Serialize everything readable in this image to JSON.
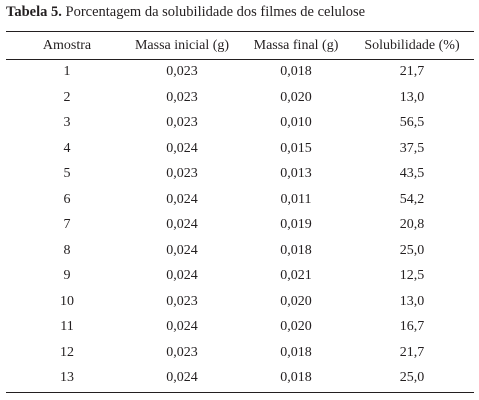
{
  "caption": {
    "label": "Tabela 5.",
    "text": "Porcentagem da solubilidade dos filmes de celulose"
  },
  "table": {
    "headers": [
      "Amostra",
      "Massa inicial (g)",
      "Massa final (g)",
      "Solubilidade (%)"
    ],
    "rows": [
      [
        "1",
        "0,023",
        "0,018",
        "21,7"
      ],
      [
        "2",
        "0,023",
        "0,020",
        "13,0"
      ],
      [
        "3",
        "0,023",
        "0,010",
        "56,5"
      ],
      [
        "4",
        "0,024",
        "0,015",
        "37,5"
      ],
      [
        "5",
        "0,023",
        "0,013",
        "43,5"
      ],
      [
        "6",
        "0,024",
        "0,011",
        "54,2"
      ],
      [
        "7",
        "0,024",
        "0,019",
        "20,8"
      ],
      [
        "8",
        "0,024",
        "0,018",
        "25,0"
      ],
      [
        "9",
        "0,024",
        "0,021",
        "12,5"
      ],
      [
        "10",
        "0,023",
        "0,020",
        "13,0"
      ],
      [
        "11",
        "0,024",
        "0,020",
        "16,7"
      ],
      [
        "12",
        "0,023",
        "0,018",
        "21,7"
      ],
      [
        "13",
        "0,024",
        "0,018",
        "25,0"
      ]
    ]
  }
}
